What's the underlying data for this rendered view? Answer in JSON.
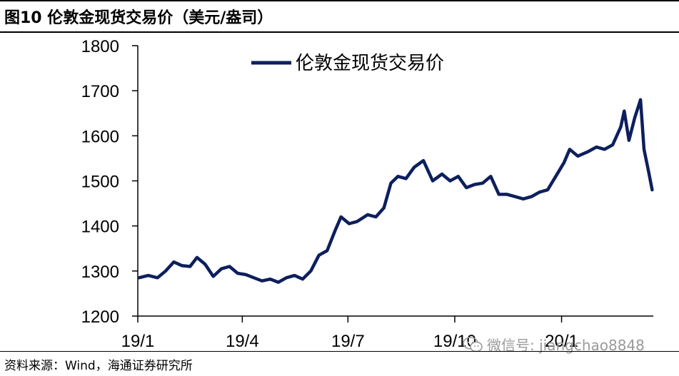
{
  "header": {
    "title": "图10 伦敦金现货交易价（美元/盎司）"
  },
  "footer": {
    "source": "资料来源：Wind，海通证券研究所"
  },
  "watermark": {
    "text": "微信号: jiangchao8848",
    "icon": "wechat-icon"
  },
  "colors": {
    "series": "#0d1f5c"
  },
  "chart_data": {
    "type": "line",
    "title": "",
    "xlabel": "",
    "ylabel": "",
    "ylim": [
      1200,
      1800
    ],
    "yticks": [
      1200,
      1300,
      1400,
      1500,
      1600,
      1700,
      1800
    ],
    "xticks": [
      "19/1",
      "19/4",
      "19/7",
      "19/10",
      "20/1"
    ],
    "xlim": [
      "2019-01-01",
      "2020-03-20"
    ],
    "legend": {
      "position": "top-left",
      "entries": [
        "伦敦金现货交易价"
      ]
    },
    "series": [
      {
        "name": "伦敦金现货交易价",
        "x": [
          "2019-01-02",
          "2019-01-10",
          "2019-01-18",
          "2019-01-25",
          "2019-02-01",
          "2019-02-08",
          "2019-02-15",
          "2019-02-21",
          "2019-02-28",
          "2019-03-07",
          "2019-03-14",
          "2019-03-21",
          "2019-03-28",
          "2019-04-04",
          "2019-04-11",
          "2019-04-18",
          "2019-04-25",
          "2019-05-02",
          "2019-05-09",
          "2019-05-16",
          "2019-05-23",
          "2019-05-30",
          "2019-06-06",
          "2019-06-13",
          "2019-06-20",
          "2019-06-25",
          "2019-07-02",
          "2019-07-09",
          "2019-07-18",
          "2019-07-25",
          "2019-08-01",
          "2019-08-07",
          "2019-08-13",
          "2019-08-20",
          "2019-08-27",
          "2019-09-04",
          "2019-09-12",
          "2019-09-20",
          "2019-09-27",
          "2019-10-04",
          "2019-10-11",
          "2019-10-18",
          "2019-10-25",
          "2019-11-01",
          "2019-11-08",
          "2019-11-15",
          "2019-11-22",
          "2019-11-29",
          "2019-12-06",
          "2019-12-13",
          "2019-12-20",
          "2019-12-27",
          "2020-01-03",
          "2020-01-08",
          "2020-01-15",
          "2020-01-24",
          "2020-01-31",
          "2020-02-07",
          "2020-02-14",
          "2020-02-21",
          "2020-02-24",
          "2020-02-28",
          "2020-03-04",
          "2020-03-09",
          "2020-03-12",
          "2020-03-16",
          "2020-03-19"
        ],
        "values": [
          1285,
          1290,
          1285,
          1300,
          1320,
          1312,
          1310,
          1330,
          1315,
          1288,
          1305,
          1310,
          1295,
          1292,
          1285,
          1278,
          1282,
          1275,
          1285,
          1290,
          1282,
          1300,
          1335,
          1345,
          1390,
          1420,
          1405,
          1410,
          1425,
          1420,
          1440,
          1495,
          1510,
          1505,
          1530,
          1545,
          1500,
          1515,
          1500,
          1510,
          1485,
          1492,
          1495,
          1510,
          1470,
          1470,
          1465,
          1460,
          1465,
          1475,
          1480,
          1510,
          1540,
          1570,
          1555,
          1565,
          1575,
          1570,
          1580,
          1620,
          1655,
          1590,
          1640,
          1680,
          1570,
          1520,
          1480
        ]
      }
    ]
  }
}
